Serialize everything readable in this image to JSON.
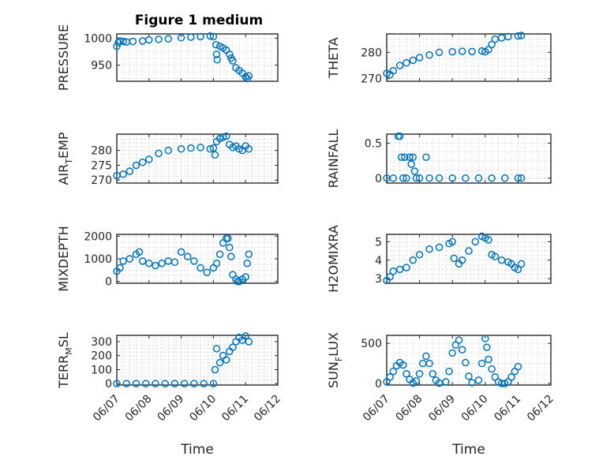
{
  "figure_title": "Figure 1 medium",
  "x_axis": {
    "label": "Time",
    "tick_labels": [
      "06/07",
      "06/08",
      "06/09",
      "06/10",
      "06/11",
      "06/12"
    ]
  },
  "chart_data": [
    {
      "type": "scatter",
      "ylabel": "PRESSURE",
      "title": "Figure 1 medium",
      "xlabel": "",
      "ylim": [
        920,
        1008
      ],
      "yticks": [
        950,
        1000
      ],
      "xlim": [
        "06/07",
        "06/12"
      ],
      "points": [
        [
          0.0,
          985
        ],
        [
          0.05,
          992
        ],
        [
          0.1,
          995
        ],
        [
          0.2,
          994
        ],
        [
          0.3,
          993
        ],
        [
          0.5,
          994
        ],
        [
          0.8,
          995
        ],
        [
          1.0,
          997
        ],
        [
          1.3,
          998
        ],
        [
          1.6,
          999
        ],
        [
          2.0,
          1001
        ],
        [
          2.3,
          1002
        ],
        [
          2.6,
          1003
        ],
        [
          2.9,
          1004
        ],
        [
          3.0,
          1003
        ],
        [
          3.08,
          988
        ],
        [
          3.1,
          970
        ],
        [
          3.12,
          960
        ],
        [
          3.2,
          985
        ],
        [
          3.3,
          982
        ],
        [
          3.4,
          978
        ],
        [
          3.5,
          970
        ],
        [
          3.55,
          963
        ],
        [
          3.6,
          958
        ],
        [
          3.7,
          945
        ],
        [
          3.8,
          940
        ],
        [
          3.9,
          935
        ],
        [
          4.0,
          928
        ],
        [
          4.05,
          925
        ],
        [
          4.1,
          930
        ]
      ]
    },
    {
      "type": "scatter",
      "ylabel": "THETA",
      "xlabel": "",
      "ylim": [
        269,
        287
      ],
      "yticks": [
        270,
        280
      ],
      "xlim": [
        "06/07",
        "06/12"
      ],
      "points": [
        [
          0.0,
          272
        ],
        [
          0.1,
          271.5
        ],
        [
          0.2,
          273
        ],
        [
          0.4,
          275
        ],
        [
          0.6,
          276
        ],
        [
          0.8,
          277
        ],
        [
          1.0,
          278
        ],
        [
          1.3,
          279
        ],
        [
          1.6,
          280
        ],
        [
          2.0,
          280.2
        ],
        [
          2.3,
          280.4
        ],
        [
          2.6,
          280.3
        ],
        [
          2.9,
          280.5
        ],
        [
          3.0,
          280.2
        ],
        [
          3.1,
          281
        ],
        [
          3.2,
          283
        ],
        [
          3.3,
          285
        ],
        [
          3.5,
          285.5
        ],
        [
          3.7,
          286
        ],
        [
          4.0,
          286.2
        ],
        [
          4.1,
          286.4
        ]
      ]
    },
    {
      "type": "scatter",
      "ylabel": "AIR_TEMP",
      "xlabel": "",
      "ylim": [
        269,
        285.5
      ],
      "yticks": [
        270,
        275,
        280
      ],
      "xlim": [
        "06/07",
        "06/12"
      ],
      "points": [
        [
          0.0,
          271.5
        ],
        [
          0.2,
          272
        ],
        [
          0.4,
          273
        ],
        [
          0.6,
          275
        ],
        [
          0.8,
          276
        ],
        [
          1.0,
          277
        ],
        [
          1.3,
          279
        ],
        [
          1.6,
          280
        ],
        [
          2.0,
          280.5
        ],
        [
          2.3,
          280.8
        ],
        [
          2.6,
          281
        ],
        [
          2.9,
          280.5
        ],
        [
          3.0,
          280.8
        ],
        [
          3.05,
          278.5
        ],
        [
          3.1,
          283
        ],
        [
          3.2,
          284
        ],
        [
          3.3,
          284.5
        ],
        [
          3.4,
          284.8
        ],
        [
          3.5,
          282
        ],
        [
          3.6,
          281
        ],
        [
          3.7,
          281.5
        ],
        [
          3.8,
          280.5
        ],
        [
          3.9,
          280
        ],
        [
          4.0,
          281.5
        ],
        [
          4.1,
          280.5
        ]
      ]
    },
    {
      "type": "scatter",
      "ylabel": "RAINFALL",
      "xlabel": "",
      "ylim": [
        -0.07,
        0.63
      ],
      "yticks": [
        0,
        0.5
      ],
      "xlim": [
        "06/07",
        "06/12"
      ],
      "points": [
        [
          0.0,
          0
        ],
        [
          0.2,
          0
        ],
        [
          0.35,
          0.6
        ],
        [
          0.4,
          0.6
        ],
        [
          0.45,
          0.3
        ],
        [
          0.5,
          0
        ],
        [
          0.55,
          0.3
        ],
        [
          0.6,
          0
        ],
        [
          0.7,
          0.3
        ],
        [
          0.75,
          0.2
        ],
        [
          0.8,
          0.3
        ],
        [
          0.85,
          0.1
        ],
        [
          0.9,
          0
        ],
        [
          1.0,
          0
        ],
        [
          1.2,
          0.3
        ],
        [
          1.3,
          0
        ],
        [
          1.6,
          0
        ],
        [
          2.0,
          0
        ],
        [
          2.4,
          0
        ],
        [
          2.8,
          0
        ],
        [
          3.2,
          0
        ],
        [
          3.6,
          0
        ],
        [
          4.0,
          0
        ],
        [
          4.1,
          0
        ]
      ]
    },
    {
      "type": "scatter",
      "ylabel": "MIXDEPTH",
      "xlabel": "",
      "ylim": [
        -80,
        2080
      ],
      "yticks": [
        0,
        1000,
        2000
      ],
      "xlim": [
        "06/07",
        "06/12"
      ],
      "points": [
        [
          0.0,
          450
        ],
        [
          0.1,
          600
        ],
        [
          0.2,
          900
        ],
        [
          0.4,
          1000
        ],
        [
          0.6,
          1200
        ],
        [
          0.7,
          1300
        ],
        [
          0.8,
          900
        ],
        [
          1.0,
          800
        ],
        [
          1.2,
          700
        ],
        [
          1.4,
          800
        ],
        [
          1.6,
          900
        ],
        [
          1.8,
          850
        ],
        [
          2.0,
          1300
        ],
        [
          2.2,
          1100
        ],
        [
          2.4,
          900
        ],
        [
          2.6,
          600
        ],
        [
          2.8,
          400
        ],
        [
          3.0,
          600
        ],
        [
          3.1,
          800
        ],
        [
          3.2,
          1200
        ],
        [
          3.3,
          1700
        ],
        [
          3.4,
          1900
        ],
        [
          3.45,
          1900
        ],
        [
          3.5,
          1500
        ],
        [
          3.55,
          1100
        ],
        [
          3.6,
          300
        ],
        [
          3.7,
          100
        ],
        [
          3.75,
          0
        ],
        [
          3.8,
          0
        ],
        [
          3.9,
          100
        ],
        [
          4.0,
          200
        ],
        [
          4.05,
          800
        ],
        [
          4.1,
          1200
        ]
      ]
    },
    {
      "type": "scatter",
      "ylabel": "H2OMIXRA",
      "xlabel": "",
      "ylim": [
        2.75,
        5.4
      ],
      "yticks": [
        3,
        4,
        5
      ],
      "xlim": [
        "06/07",
        "06/12"
      ],
      "points": [
        [
          0.0,
          2.9
        ],
        [
          0.1,
          3.1
        ],
        [
          0.2,
          3.4
        ],
        [
          0.4,
          3.5
        ],
        [
          0.6,
          3.6
        ],
        [
          0.8,
          4.0
        ],
        [
          1.0,
          4.3
        ],
        [
          1.3,
          4.6
        ],
        [
          1.6,
          4.7
        ],
        [
          1.9,
          4.9
        ],
        [
          2.0,
          5.0
        ],
        [
          2.05,
          4.1
        ],
        [
          2.2,
          3.8
        ],
        [
          2.3,
          4.0
        ],
        [
          2.5,
          4.5
        ],
        [
          2.7,
          5.0
        ],
        [
          2.9,
          5.3
        ],
        [
          3.0,
          5.2
        ],
        [
          3.1,
          5.1
        ],
        [
          3.2,
          4.3
        ],
        [
          3.3,
          4.2
        ],
        [
          3.5,
          4.0
        ],
        [
          3.7,
          3.9
        ],
        [
          3.8,
          3.8
        ],
        [
          3.9,
          3.6
        ],
        [
          4.0,
          3.5
        ],
        [
          4.1,
          3.8
        ]
      ]
    },
    {
      "type": "scatter",
      "ylabel": "TERR_MSL",
      "xlabel": "Time",
      "ylim": [
        -10,
        345
      ],
      "yticks": [
        0,
        100,
        200,
        300
      ],
      "xlim": [
        "06/07",
        "06/12"
      ],
      "points": [
        [
          0.0,
          0
        ],
        [
          0.3,
          0
        ],
        [
          0.6,
          0
        ],
        [
          0.9,
          0
        ],
        [
          1.2,
          0
        ],
        [
          1.5,
          0
        ],
        [
          1.8,
          0
        ],
        [
          2.1,
          0
        ],
        [
          2.4,
          0
        ],
        [
          2.7,
          0
        ],
        [
          3.0,
          0
        ],
        [
          3.05,
          100
        ],
        [
          3.1,
          250
        ],
        [
          3.2,
          150
        ],
        [
          3.3,
          200
        ],
        [
          3.4,
          170
        ],
        [
          3.5,
          230
        ],
        [
          3.6,
          260
        ],
        [
          3.7,
          300
        ],
        [
          3.8,
          330
        ],
        [
          3.9,
          310
        ],
        [
          4.0,
          340
        ],
        [
          4.1,
          300
        ]
      ]
    },
    {
      "type": "scatter",
      "ylabel": "SUN_FLUX",
      "xlabel": "Time",
      "ylim": [
        -20,
        600
      ],
      "yticks": [
        0,
        500
      ],
      "xlim": [
        "06/07",
        "06/12"
      ],
      "points": [
        [
          0.0,
          20
        ],
        [
          0.1,
          80
        ],
        [
          0.2,
          150
        ],
        [
          0.3,
          220
        ],
        [
          0.4,
          260
        ],
        [
          0.5,
          230
        ],
        [
          0.6,
          120
        ],
        [
          0.7,
          50
        ],
        [
          0.8,
          5
        ],
        [
          0.9,
          30
        ],
        [
          1.0,
          120
        ],
        [
          1.1,
          250
        ],
        [
          1.2,
          340
        ],
        [
          1.3,
          250
        ],
        [
          1.4,
          120
        ],
        [
          1.5,
          40
        ],
        [
          1.6,
          5
        ],
        [
          1.8,
          20
        ],
        [
          1.9,
          150
        ],
        [
          2.0,
          380
        ],
        [
          2.1,
          480
        ],
        [
          2.2,
          540
        ],
        [
          2.3,
          420
        ],
        [
          2.4,
          260
        ],
        [
          2.5,
          90
        ],
        [
          2.6,
          10
        ],
        [
          2.8,
          40
        ],
        [
          2.9,
          250
        ],
        [
          3.0,
          560
        ],
        [
          3.05,
          450
        ],
        [
          3.1,
          300
        ],
        [
          3.2,
          180
        ],
        [
          3.3,
          80
        ],
        [
          3.4,
          20
        ],
        [
          3.5,
          0
        ],
        [
          3.6,
          0
        ],
        [
          3.7,
          20
        ],
        [
          3.8,
          80
        ],
        [
          3.9,
          150
        ],
        [
          4.0,
          210
        ]
      ]
    }
  ]
}
